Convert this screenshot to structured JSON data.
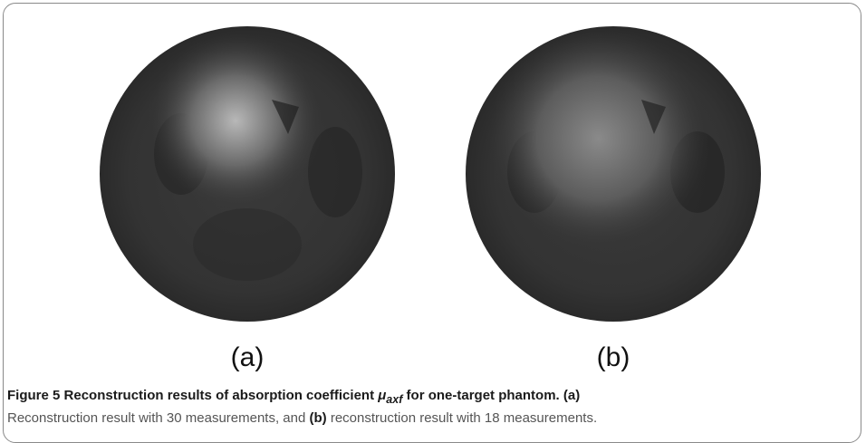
{
  "figure": {
    "panels": [
      {
        "label": "(a)"
      },
      {
        "label": "(b)"
      }
    ],
    "caption": {
      "number": "Figure 5",
      "title": "Reconstruction results of absorption coefficient",
      "symbol": "μ",
      "subscript": "axf",
      "title_end": "for one-target phantom.",
      "parts": [
        {
          "label": "(a)",
          "text": "Reconstruction result with 30 measurements, and"
        },
        {
          "label": "(b)",
          "text": "reconstruction result with 18 measurements."
        }
      ]
    }
  }
}
